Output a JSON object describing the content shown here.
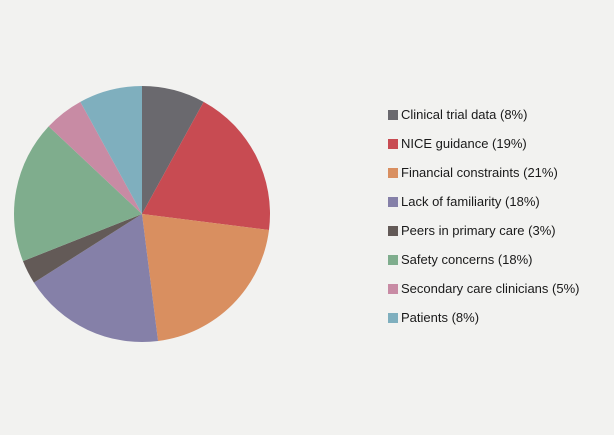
{
  "figure": {
    "background_color": "#f2f2f0",
    "text_color": "#1a1a1a"
  },
  "chart_data": {
    "type": "pie",
    "title": "",
    "labels": [
      "Clinical trial data",
      "NICE guidance",
      "Financial constraints",
      "Lack of familiarity",
      "Peers in primary care",
      "Safety concerns",
      "Secondary care clinicians",
      "Patients"
    ],
    "values": [
      8,
      19,
      21,
      18,
      3,
      18,
      5,
      8
    ],
    "unit": "%",
    "colors": [
      "#6a696e",
      "#c84b52",
      "#d98f60",
      "#8580a8",
      "#635a57",
      "#7fad8d",
      "#c88ba4",
      "#7fafbe"
    ],
    "legend_entries": [
      "Clinical trial data (8%)",
      "NICE guidance (19%)",
      "Financial constraints (21%)",
      "Lack of familiarity (18%)",
      "Peers in primary care (3%)",
      "Safety concerns (18%)",
      "Secondary care clinicians (5%)",
      "Patients (8%)"
    ],
    "start_angle": "12-oclock",
    "direction": "clockwise",
    "legend_position": "right",
    "grid": false
  }
}
